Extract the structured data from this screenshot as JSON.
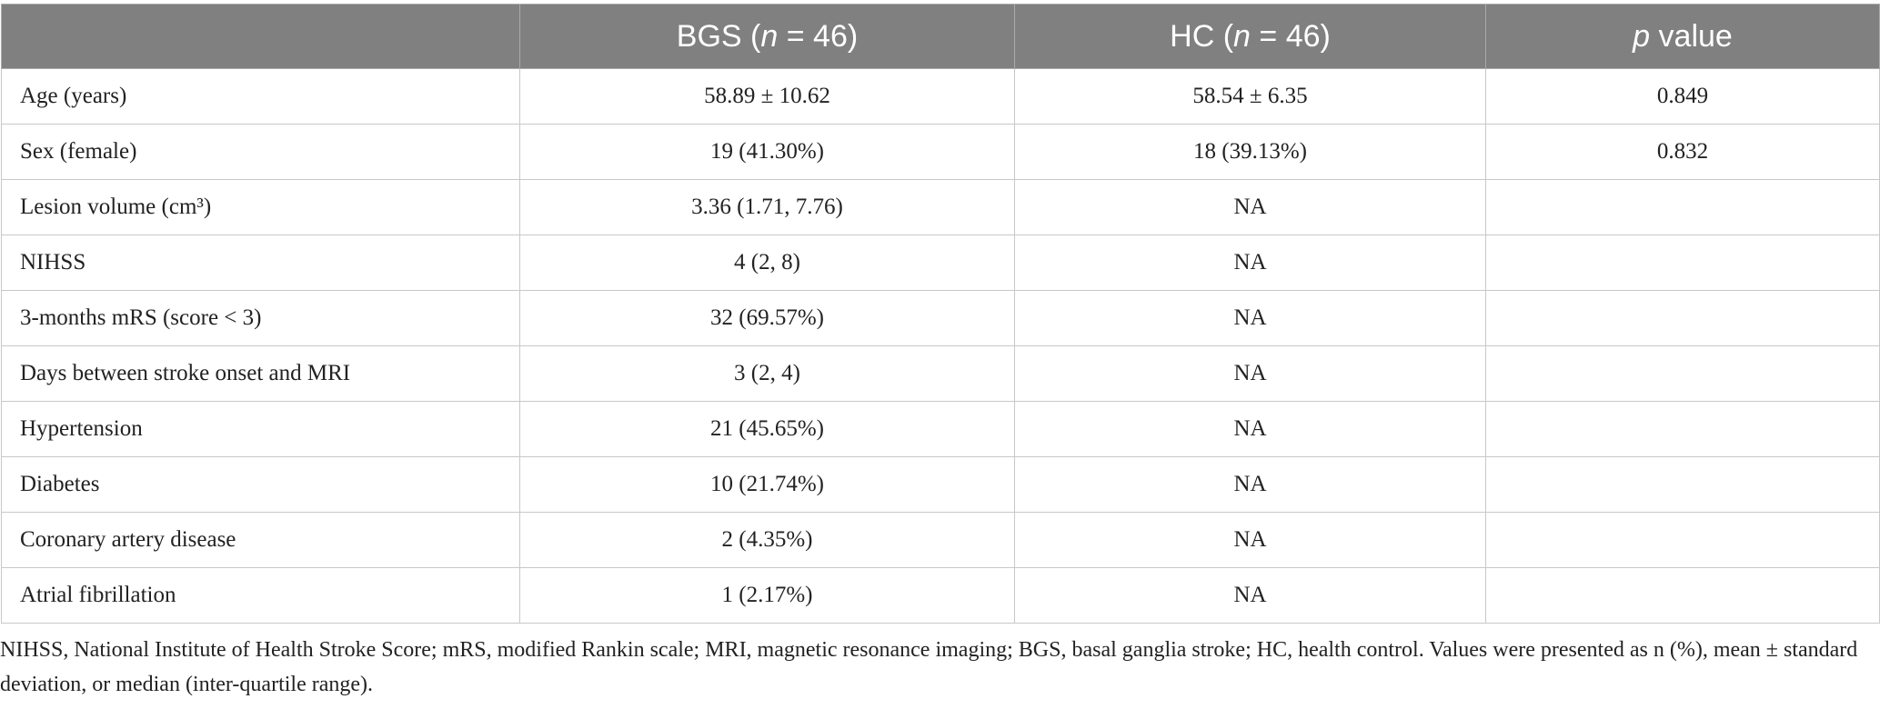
{
  "table": {
    "header": [
      [
        "BGS (",
        "n",
        " = 46)"
      ],
      [
        "HC (",
        "n",
        " = 46)"
      ],
      [
        "p",
        " value"
      ]
    ],
    "rows": [
      [
        "Age (years)",
        "58.89 ± 10.62",
        "58.54 ± 6.35",
        "0.849"
      ],
      [
        "Sex (female)",
        "19 (41.30%)",
        "18 (39.13%)",
        "0.832"
      ],
      [
        "Lesion volume (cm³)",
        "3.36 (1.71, 7.76)",
        "NA"
      ],
      [
        "NIHSS",
        "4 (2, 8)",
        "NA"
      ],
      [
        "3-months mRS (score < 3)",
        "32 (69.57%)",
        "NA"
      ],
      [
        "Days between stroke onset and MRI",
        "3 (2, 4)",
        "NA"
      ],
      [
        "Hypertension",
        "21 (45.65%)",
        "NA"
      ],
      [
        "Diabetes",
        "10 (21.74%)",
        "NA"
      ],
      [
        "Coronary artery disease",
        "2 (4.35%)",
        "NA"
      ],
      [
        "Atrial fibrillation",
        "1 (2.17%)",
        "NA"
      ]
    ]
  },
  "footnote": "NIHSS, National Institute of Health Stroke Score; mRS, modified Rankin scale; MRI, magnetic resonance imaging; BGS, basal ganglia stroke; HC, health control. Values were presented as n (%), mean ± standard deviation, or median (inter-quartile range)."
}
